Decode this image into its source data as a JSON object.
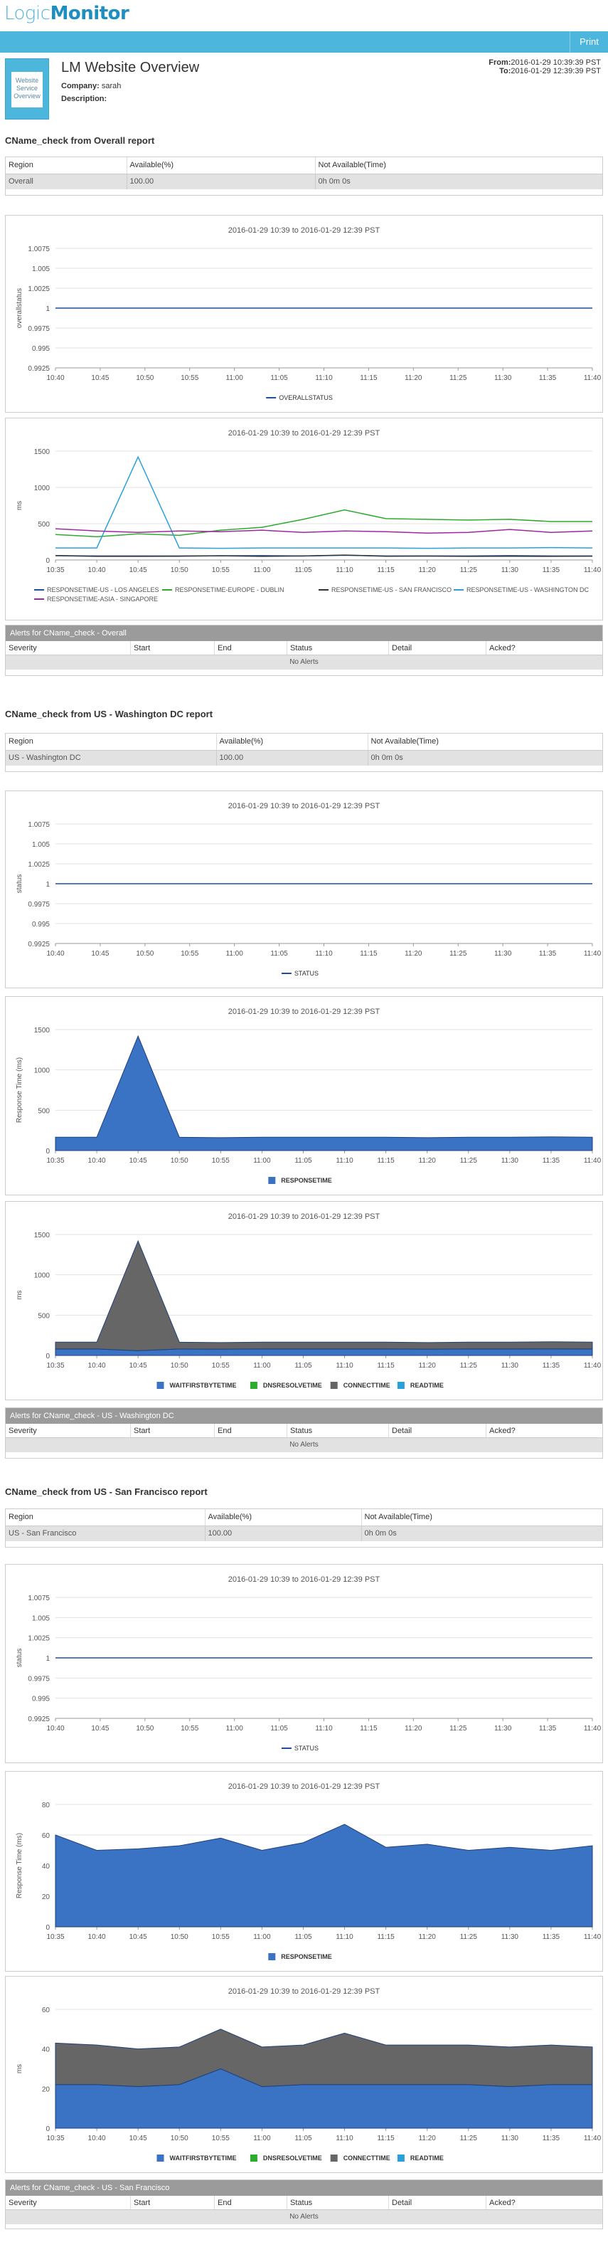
{
  "app": {
    "logo_prefix": "Logic",
    "logo_suffix": "Monitor",
    "print_label": "Print"
  },
  "report": {
    "thumb_label": "Website Service Overview",
    "title": "LM Website Overview",
    "company_label": "Company:",
    "company": "sarah",
    "description_label": "Description:",
    "description": "",
    "from_label": "From:",
    "from": "2016-01-29 10:39:39 PST",
    "to_label": "To:",
    "to": "2016-01-29 12:39:39 PST"
  },
  "table_headers": [
    "Region",
    "Available(%)",
    "Not Available(Time)"
  ],
  "alert_headers": [
    "Severity",
    "Start",
    "End",
    "Status",
    "Detail",
    "Acked?"
  ],
  "no_alerts": "No Alerts",
  "chart_title": "2016-01-29 10:39 to 2016-01-29 12:39 PST",
  "sections": [
    {
      "title": "CName_check from Overall report",
      "row": [
        "Overall",
        "100.00",
        "0h 0m 0s"
      ],
      "alerts_title": "Alerts for CName_check - Overall"
    },
    {
      "title": "CName_check from US - Washington DC report",
      "row": [
        "US - Washington DC",
        "100.00",
        "0h 0m 0s"
      ],
      "alerts_title": "Alerts for CName_check - US - Washington DC"
    },
    {
      "title": "CName_check from US - San Francisco report",
      "row": [
        "US - San Francisco",
        "100.00",
        "0h 0m 0s"
      ],
      "alerts_title": "Alerts for CName_check - US - San Francisco"
    }
  ],
  "chart_data": [
    {
      "type": "line",
      "title": "2016-01-29 10:39 to 2016-01-29 12:39 PST",
      "ylabel": "overallstatus",
      "categories": [
        "10:40",
        "10:45",
        "10:50",
        "10:55",
        "11:00",
        "11:05",
        "11:10",
        "11:15",
        "11:20",
        "11:25",
        "11:30",
        "11:35",
        "11:40"
      ],
      "yticks": [
        "0.9925",
        "0.995",
        "0.9975",
        "1",
        "1.0025",
        "1.005",
        "1.0075"
      ],
      "ylim": [
        0.9925,
        1.0075
      ],
      "series": [
        {
          "name": "OVERALLSTATUS",
          "color": "#1f4e9c",
          "values": [
            1,
            1,
            1,
            1,
            1,
            1,
            1,
            1,
            1,
            1,
            1,
            1,
            1
          ]
        }
      ],
      "legend_position": "bottom"
    },
    {
      "type": "line",
      "title": "2016-01-29 10:39 to 2016-01-29 12:39 PST",
      "ylabel": "ms",
      "categories": [
        "10:35",
        "10:40",
        "10:45",
        "10:50",
        "10:55",
        "11:00",
        "11:05",
        "11:10",
        "11:15",
        "11:20",
        "11:25",
        "11:30",
        "11:35",
        "11:40"
      ],
      "yticks": [
        "0",
        "500",
        "1000",
        "1500"
      ],
      "ylim": [
        0,
        1500
      ],
      "series": [
        {
          "name": "RESPONSETIME-US - LOS ANGELES",
          "color": "#1f4e9c",
          "values": [
            60,
            55,
            55,
            55,
            58,
            60,
            55,
            65,
            55,
            55,
            55,
            60,
            55,
            55
          ]
        },
        {
          "name": "RESPONSETIME-EUROPE - DUBLIN",
          "color": "#2cab2c",
          "values": [
            350,
            320,
            360,
            340,
            410,
            450,
            560,
            690,
            570,
            560,
            550,
            560,
            530,
            530
          ]
        },
        {
          "name": "RESPONSETIME-US - SAN FRANCISCO",
          "color": "#333333",
          "values": [
            60,
            50,
            50,
            52,
            58,
            50,
            55,
            67,
            52,
            54,
            50,
            52,
            50,
            53
          ]
        },
        {
          "name": "RESPONSETIME-US - WASHINGTON DC",
          "color": "#2aa0db",
          "values": [
            165,
            165,
            1420,
            165,
            160,
            165,
            165,
            165,
            165,
            160,
            165,
            165,
            170,
            165
          ]
        },
        {
          "name": "RESPONSETIME-ASIA - SINGAPORE",
          "color": "#9c2a9c",
          "values": [
            430,
            400,
            380,
            400,
            390,
            410,
            380,
            400,
            390,
            370,
            380,
            420,
            380,
            400
          ]
        }
      ],
      "legend_position": "bottom"
    },
    {
      "type": "line",
      "title": "2016-01-29 10:39 to 2016-01-29 12:39 PST",
      "ylabel": "status",
      "categories": [
        "10:40",
        "10:45",
        "10:50",
        "10:55",
        "11:00",
        "11:05",
        "11:10",
        "11:15",
        "11:20",
        "11:25",
        "11:30",
        "11:35",
        "11:40"
      ],
      "yticks": [
        "0.9925",
        "0.995",
        "0.9975",
        "1",
        "1.0025",
        "1.005",
        "1.0075"
      ],
      "ylim": [
        0.9925,
        1.0075
      ],
      "series": [
        {
          "name": "STATUS",
          "color": "#1f4e9c",
          "values": [
            1,
            1,
            1,
            1,
            1,
            1,
            1,
            1,
            1,
            1,
            1,
            1,
            1
          ]
        }
      ],
      "legend_position": "bottom"
    },
    {
      "type": "area",
      "title": "2016-01-29 10:39 to 2016-01-29 12:39 PST",
      "ylabel": "Response Time (ms)",
      "categories": [
        "10:35",
        "10:40",
        "10:45",
        "10:50",
        "10:55",
        "11:00",
        "11:05",
        "11:10",
        "11:15",
        "11:20",
        "11:25",
        "11:30",
        "11:35",
        "11:40"
      ],
      "yticks": [
        "0",
        "500",
        "1000",
        "1500"
      ],
      "ylim": [
        0,
        1500
      ],
      "series": [
        {
          "name": "RESPONSETIME",
          "color": "#3a72c4",
          "values": [
            165,
            165,
            1420,
            165,
            160,
            165,
            165,
            165,
            165,
            160,
            165,
            165,
            170,
            165
          ]
        }
      ],
      "legend_position": "bottom"
    },
    {
      "type": "area",
      "stacked": true,
      "title": "2016-01-29 10:39 to 2016-01-29 12:39 PST",
      "ylabel": "ms",
      "categories": [
        "10:35",
        "10:40",
        "10:45",
        "10:50",
        "10:55",
        "11:00",
        "11:05",
        "11:10",
        "11:15",
        "11:20",
        "11:25",
        "11:30",
        "11:35",
        "11:40"
      ],
      "yticks": [
        "0",
        "500",
        "1000",
        "1500"
      ],
      "ylim": [
        0,
        1500
      ],
      "series": [
        {
          "name": "WAITFIRSTBYTETIME",
          "color": "#3a72c4",
          "values": [
            80,
            80,
            60,
            80,
            78,
            80,
            80,
            80,
            80,
            78,
            80,
            80,
            82,
            80
          ]
        },
        {
          "name": "DNSRESOLVETIME",
          "color": "#2cab2c",
          "values": [
            0,
            0,
            0,
            0,
            0,
            0,
            0,
            0,
            0,
            0,
            0,
            0,
            0,
            0
          ]
        },
        {
          "name": "CONNECTTIME",
          "color": "#666666",
          "values": [
            85,
            85,
            1360,
            85,
            82,
            85,
            85,
            85,
            85,
            82,
            85,
            85,
            88,
            85
          ]
        },
        {
          "name": "READTIME",
          "color": "#2aa0db",
          "values": [
            0,
            0,
            0,
            0,
            0,
            0,
            0,
            0,
            0,
            0,
            0,
            0,
            0,
            0
          ]
        }
      ],
      "legend_position": "bottom"
    },
    {
      "type": "line",
      "title": "2016-01-29 10:39 to 2016-01-29 12:39 PST",
      "ylabel": "status",
      "categories": [
        "10:40",
        "10:45",
        "10:50",
        "10:55",
        "11:00",
        "11:05",
        "11:10",
        "11:15",
        "11:20",
        "11:25",
        "11:30",
        "11:35",
        "11:40"
      ],
      "yticks": [
        "0.9925",
        "0.995",
        "0.9975",
        "1",
        "1.0025",
        "1.005",
        "1.0075"
      ],
      "ylim": [
        0.9925,
        1.0075
      ],
      "series": [
        {
          "name": "STATUS",
          "color": "#1f4e9c",
          "values": [
            1,
            1,
            1,
            1,
            1,
            1,
            1,
            1,
            1,
            1,
            1,
            1,
            1
          ]
        }
      ],
      "legend_position": "bottom"
    },
    {
      "type": "area",
      "title": "2016-01-29 10:39 to 2016-01-29 12:39 PST",
      "ylabel": "Response Time (ms)",
      "categories": [
        "10:35",
        "10:40",
        "10:45",
        "10:50",
        "10:55",
        "11:00",
        "11:05",
        "11:10",
        "11:15",
        "11:20",
        "11:25",
        "11:30",
        "11:35",
        "11:40"
      ],
      "yticks": [
        "0",
        "20",
        "40",
        "60",
        "80"
      ],
      "ylim": [
        0,
        80
      ],
      "series": [
        {
          "name": "RESPONSETIME",
          "color": "#3a72c4",
          "values": [
            60,
            50,
            51,
            53,
            58,
            50,
            55,
            67,
            52,
            54,
            50,
            52,
            50,
            53
          ]
        }
      ],
      "legend_position": "bottom"
    },
    {
      "type": "area",
      "stacked": true,
      "title": "2016-01-29 10:39 to 2016-01-29 12:39 PST",
      "ylabel": "ms",
      "categories": [
        "10:35",
        "10:40",
        "10:45",
        "10:50",
        "10:55",
        "11:00",
        "11:05",
        "11:10",
        "11:15",
        "11:20",
        "11:25",
        "11:30",
        "11:35",
        "11:40"
      ],
      "yticks": [
        "0",
        "20",
        "40",
        "60"
      ],
      "ylim": [
        0,
        60
      ],
      "series": [
        {
          "name": "WAITFIRSTBYTETIME",
          "color": "#3a72c4",
          "values": [
            22,
            22,
            21,
            22,
            30,
            21,
            22,
            22,
            22,
            22,
            22,
            21,
            22,
            22
          ]
        },
        {
          "name": "DNSRESOLVETIME",
          "color": "#2cab2c",
          "values": [
            0,
            0,
            0,
            0,
            0,
            0,
            0,
            0,
            0,
            0,
            0,
            0,
            0,
            0
          ]
        },
        {
          "name": "CONNECTTIME",
          "color": "#666666",
          "values": [
            21,
            20,
            19,
            19,
            20,
            20,
            20,
            26,
            20,
            20,
            20,
            20,
            20,
            19
          ]
        },
        {
          "name": "READTIME",
          "color": "#2aa0db",
          "values": [
            0,
            0,
            0,
            0,
            0,
            0,
            0,
            0,
            0,
            0,
            0,
            0,
            0,
            0
          ]
        }
      ],
      "legend_position": "bottom"
    }
  ]
}
